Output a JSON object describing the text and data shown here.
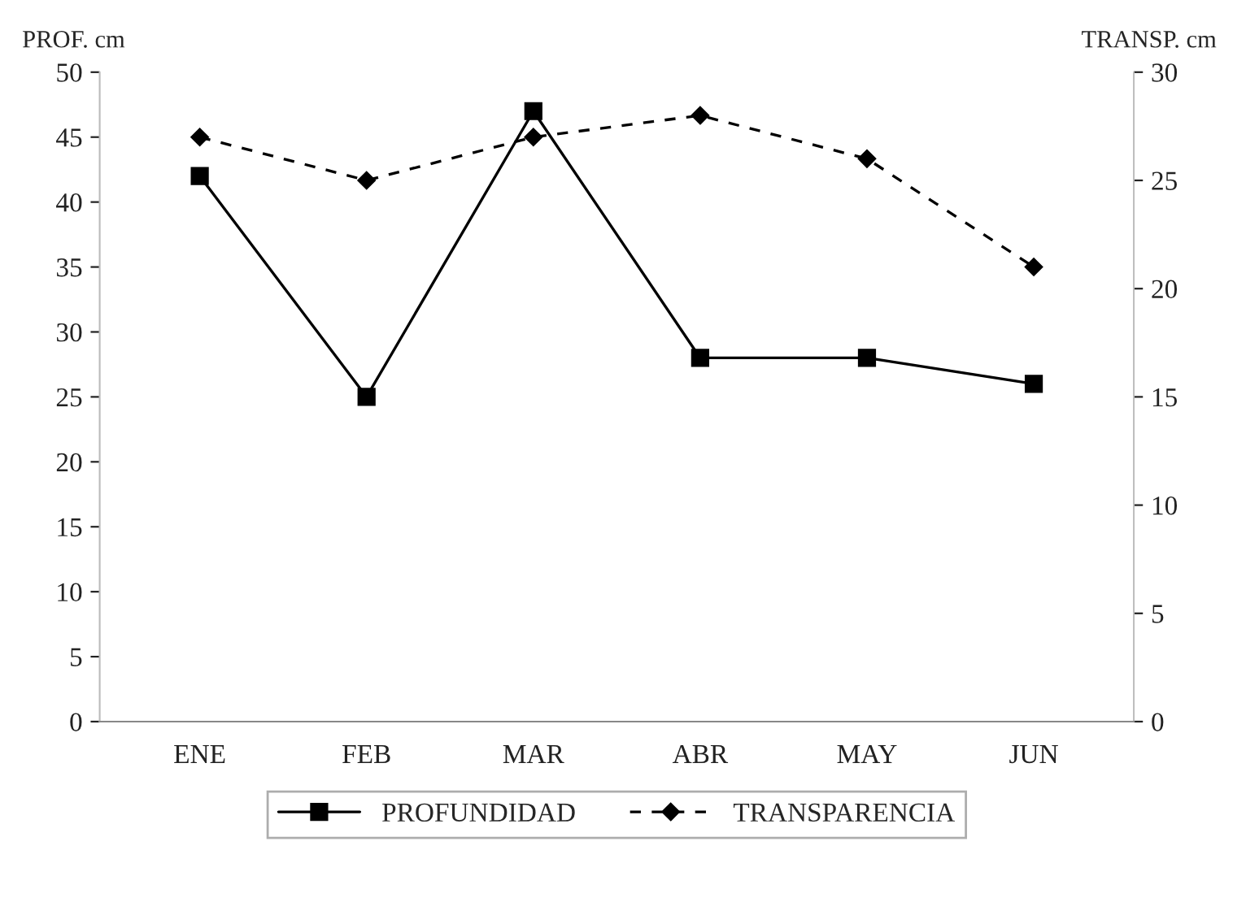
{
  "chart_data": {
    "type": "line",
    "ylabel": "PROF. cm",
    "y2label": "TRANSP. cm",
    "categories": [
      "ENE",
      "FEB",
      "MAR",
      "ABR",
      "MAY",
      "JUN"
    ],
    "series": [
      {
        "name": "PROFUNDIDAD",
        "color": "#000000",
        "values": [
          42,
          25,
          47,
          28,
          28,
          26
        ],
        "marker": "square",
        "line_style": "solid"
      },
      {
        "name": "TRANSPARENCIA",
        "color": "#000000",
        "values": [
          27,
          25,
          27,
          28,
          26,
          21
        ],
        "marker": "diamond",
        "line_style": "dashed",
        "axis": "y2"
      }
    ],
    "ylim": [
      0,
      50
    ],
    "yticks": [
      0,
      5,
      10,
      15,
      20,
      25,
      30,
      35,
      40,
      45,
      50
    ],
    "y2lim": [
      0,
      30
    ],
    "y2ticks": [
      0,
      5,
      10,
      15,
      20,
      25,
      30
    ],
    "grid": false,
    "legend": "bottom"
  }
}
